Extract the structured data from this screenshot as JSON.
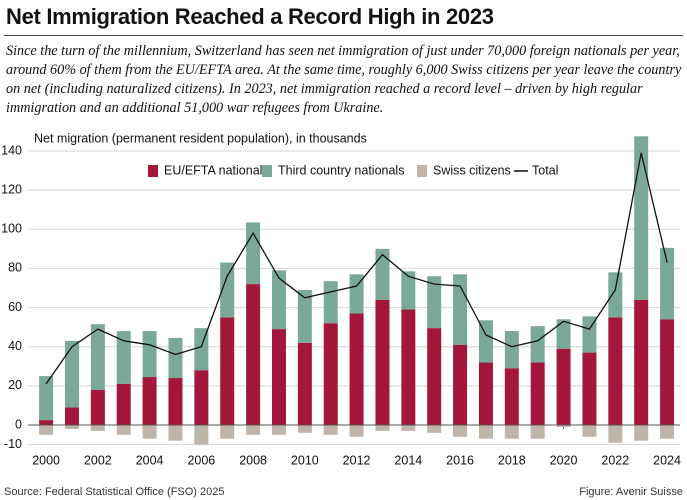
{
  "chart_data": {
    "type": "stacked-bar-line",
    "title": "Net Immigration Reached a Record High in 2023",
    "subtitle": "Since the turn of the millennium, Switzerland has seen net immigration of just under 70,000 foreign nationals per year, around 60% of them from the EU/EFTA area. At the same time, roughly 6,000 Swiss citizens per year leave the country on net (including naturalized citizens). In 2023, net immigration reached a record level – driven by high regular immigration and an additional 51,000 war refugees from Ukraine.",
    "y_label": "Net migration (permanent resident population), in thousands",
    "source": "Source: Federal Statistical Office (FSO) 2025",
    "credit": "Figure: Avenir Suisse",
    "x": [
      2000,
      2001,
      2002,
      2003,
      2004,
      2005,
      2006,
      2007,
      2008,
      2009,
      2010,
      2011,
      2012,
      2013,
      2014,
      2015,
      2016,
      2017,
      2018,
      2019,
      2020,
      2021,
      2022,
      2023,
      2024
    ],
    "xlim": [
      1999.3,
      2024.5
    ],
    "xticks": [
      2000,
      2002,
      2004,
      2006,
      2008,
      2010,
      2012,
      2014,
      2016,
      2018,
      2020,
      2022,
      2024
    ],
    "ylim": [
      -12,
      150
    ],
    "yticks": [
      -10,
      0,
      20,
      40,
      60,
      80,
      100,
      120,
      140
    ],
    "grid": true,
    "series": [
      {
        "name": "EU/EFTA nationals",
        "color": "#a3173a",
        "kind": "bar",
        "values": [
          2.5,
          9,
          18,
          21,
          24.5,
          24,
          28,
          55,
          72,
          49,
          42,
          52,
          57,
          64,
          59,
          49.5,
          41,
          32,
          29,
          32,
          39,
          37,
          55,
          64,
          54
        ]
      },
      {
        "name": "Third country nationals",
        "color": "#7aa899",
        "kind": "bar",
        "values": [
          22.5,
          34,
          33.5,
          27,
          23.5,
          20.5,
          21.5,
          28,
          31.5,
          30,
          27,
          21.5,
          20,
          26,
          19.5,
          26.5,
          36,
          21.5,
          19,
          18.5,
          15,
          18.5,
          23,
          83.5,
          36.5
        ]
      },
      {
        "name": "Swiss citizens",
        "color": "#bfb4aa",
        "kind": "bar",
        "values": [
          -5,
          -2,
          -3,
          -5,
          -7,
          -8,
          -10,
          -7,
          -5,
          -5,
          -4,
          -5,
          -6,
          -3,
          -3,
          -4,
          -6,
          -7,
          -7,
          -7,
          -1,
          -6,
          -9,
          -8,
          -7
        ]
      },
      {
        "name": "Total",
        "color": "#111111",
        "kind": "line",
        "values": [
          21,
          40,
          49,
          43,
          41,
          36,
          40,
          76,
          98,
          75,
          65,
          68,
          71,
          87,
          76,
          72,
          71,
          46,
          40,
          43,
          53,
          49,
          69,
          139,
          83
        ]
      }
    ]
  }
}
